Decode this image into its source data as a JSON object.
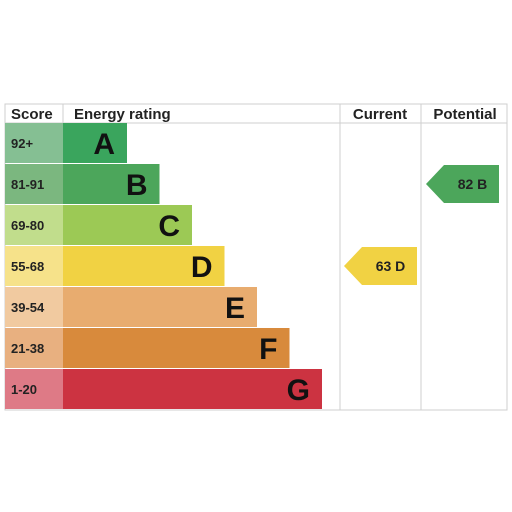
{
  "headers": {
    "score": "Score",
    "rating": "Energy rating",
    "current": "Current",
    "potential": "Potential"
  },
  "chart_data": {
    "type": "bar",
    "title": "",
    "categories": [
      "A",
      "B",
      "C",
      "D",
      "E",
      "F",
      "G"
    ],
    "score_ranges": [
      "92+",
      "81-91",
      "69-80",
      "55-68",
      "39-54",
      "21-38",
      "1-20"
    ],
    "band_colors": [
      "#3aa55d",
      "#4ca65b",
      "#9cc955",
      "#f1d243",
      "#e8ac6f",
      "#d88a3c",
      "#cc3341"
    ],
    "score_cell_colors": [
      "#85bf93",
      "#7bb77f",
      "#c1dd8c",
      "#f6e28a",
      "#f1caa0",
      "#e8b080",
      "#de7a86"
    ],
    "current": {
      "value": 63,
      "band": "D",
      "color": "#f1d243"
    },
    "potential": {
      "value": 82,
      "band": "B",
      "color": "#4ca65b"
    }
  }
}
